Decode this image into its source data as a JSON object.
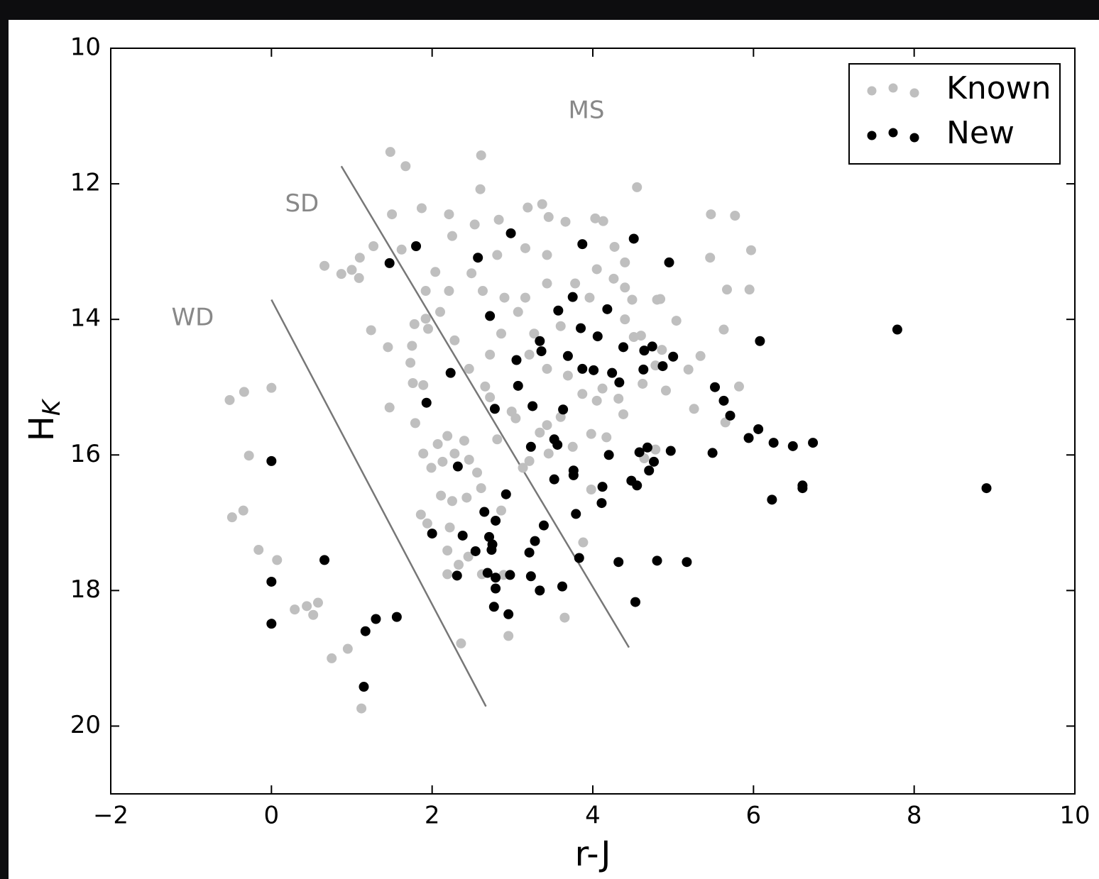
{
  "chart_data": {
    "type": "scatter",
    "xlabel": "r-J",
    "ylabel": {
      "text": "H",
      "subscript": "K"
    },
    "xlim": [
      -2,
      10
    ],
    "ylim": [
      10,
      21
    ],
    "y_inverted": true,
    "xticks": [
      {
        "value": -2,
        "label": "−2"
      },
      0,
      2,
      4,
      6,
      8,
      10
    ],
    "yticks": [
      10,
      12,
      14,
      16,
      18,
      20
    ],
    "grid": false,
    "legend": "upper right",
    "annotations": [
      {
        "text": "WD",
        "x": -0.98,
        "y": 13.99
      },
      {
        "text": "SD",
        "x": 0.38,
        "y": 12.31
      },
      {
        "text": "MS",
        "x": 3.92,
        "y": 10.93
      }
    ],
    "annotation_color": "#888888",
    "lines": [
      {
        "x": [
          0,
          2.67
        ],
        "y": [
          13.71,
          19.71
        ]
      },
      {
        "x": [
          0.87,
          4.45
        ],
        "y": [
          11.74,
          18.84
        ]
      }
    ],
    "line_color": "#777777",
    "series": [
      {
        "name": "Known",
        "color": "#bfbfbf",
        "x": [
          1.48,
          1.67,
          2.61,
          2.6,
          4.55,
          5.47,
          5.77,
          5.97,
          5.46,
          5.67,
          5.95,
          5.63,
          5.82,
          5.65,
          5.34,
          5.19,
          5.26,
          5.04,
          1.5,
          1.27,
          1.62,
          0.66,
          0.87,
          1.0,
          1.09,
          1.1,
          1.24,
          1.45,
          1.47,
          -0.52,
          -0.34,
          0.0,
          -0.28,
          -0.49,
          -0.35,
          -0.16,
          0.07,
          0.29,
          0.44,
          0.58,
          0.52,
          0.75,
          0.95,
          1.12,
          2.36,
          2.95,
          3.65,
          3.88,
          3.98,
          3.98,
          4.17,
          1.87,
          2.21,
          2.25,
          2.53,
          2.83,
          3.19,
          3.37,
          3.45,
          3.66,
          4.03,
          4.13,
          4.27,
          4.4,
          4.26,
          4.4,
          4.49,
          4.8,
          4.84,
          4.4,
          4.51,
          4.6,
          4.86,
          4.78,
          4.91,
          4.62,
          4.38,
          4.32,
          4.78,
          4.64,
          1.92,
          1.78,
          1.95,
          1.75,
          1.73,
          1.76,
          1.89,
          1.79,
          1.89,
          1.99,
          2.07,
          2.19,
          2.13,
          2.28,
          2.4,
          2.46,
          2.56,
          2.61,
          2.43,
          2.25,
          2.11,
          1.86,
          1.94,
          2.22,
          2.19,
          2.33,
          2.45,
          2.62,
          2.19,
          2.89,
          2.86,
          3.13,
          3.21,
          3.45,
          3.75,
          3.43,
          3.6,
          3.87,
          4.12,
          4.05,
          3.69,
          3.43,
          3.21,
          2.86,
          2.72,
          2.46,
          2.28,
          2.1,
          2.21,
          1.92,
          2.04,
          2.49,
          2.81,
          3.16,
          3.43,
          3.43,
          3.16,
          2.9,
          2.63,
          3.78,
          4.05,
          3.96,
          3.6,
          3.27,
          3.07,
          2.99,
          3.04,
          3.34,
          2.81,
          2.66,
          2.72
        ],
        "values": [
          11.53,
          11.74,
          11.58,
          12.08,
          12.05,
          12.45,
          12.47,
          12.98,
          13.09,
          13.56,
          13.56,
          14.15,
          14.99,
          15.52,
          14.54,
          14.74,
          15.32,
          14.02,
          12.45,
          12.92,
          12.97,
          13.21,
          13.33,
          13.27,
          13.39,
          13.09,
          14.16,
          14.41,
          15.3,
          15.19,
          15.07,
          15.01,
          16.01,
          16.92,
          16.82,
          17.4,
          17.55,
          18.28,
          18.23,
          18.18,
          18.36,
          19.0,
          18.86,
          19.74,
          18.78,
          18.67,
          18.4,
          17.29,
          16.51,
          15.69,
          15.74,
          12.36,
          12.45,
          12.77,
          12.6,
          12.53,
          12.35,
          12.3,
          12.49,
          12.56,
          12.51,
          12.55,
          12.93,
          13.16,
          13.4,
          13.53,
          13.71,
          13.71,
          13.7,
          14.0,
          14.26,
          14.24,
          14.45,
          14.68,
          15.05,
          14.95,
          15.4,
          15.17,
          15.92,
          16.05,
          13.99,
          14.07,
          14.14,
          14.39,
          14.64,
          14.94,
          14.97,
          15.53,
          15.98,
          16.19,
          15.84,
          15.72,
          16.1,
          15.98,
          15.79,
          16.07,
          16.26,
          16.49,
          16.63,
          16.68,
          16.6,
          16.88,
          17.01,
          17.07,
          17.41,
          17.62,
          17.5,
          17.76,
          17.76,
          17.77,
          16.82,
          16.19,
          16.09,
          15.98,
          15.88,
          15.56,
          15.44,
          15.1,
          15.02,
          15.2,
          14.83,
          14.73,
          14.52,
          14.21,
          14.52,
          14.73,
          14.31,
          13.89,
          13.58,
          13.58,
          13.3,
          13.32,
          13.05,
          12.95,
          13.05,
          13.47,
          13.68,
          13.68,
          13.58,
          13.47,
          13.26,
          13.68,
          14.1,
          14.21,
          13.89,
          15.36,
          15.46,
          15.67,
          15.77,
          14.99,
          15.15
        ]
      },
      {
        "name": "New",
        "color": "#000000",
        "x": [
          1.8,
          1.47,
          2.98,
          2.57,
          4.51,
          3.87,
          4.95,
          3.75,
          2.72,
          3.57,
          4.18,
          3.85,
          4.06,
          4.38,
          4.74,
          3.34,
          3.36,
          3.05,
          3.69,
          3.87,
          4.01,
          4.24,
          4.33,
          4.63,
          4.87,
          5.0,
          4.64,
          6.08,
          7.79,
          2.23,
          1.93,
          3.07,
          3.25,
          2.78,
          3.63,
          5.52,
          5.63,
          5.71,
          6.06,
          5.94,
          6.25,
          6.49,
          6.74,
          5.49,
          4.97,
          4.68,
          4.58,
          4.76,
          4.2,
          3.52,
          3.56,
          3.23,
          2.32,
          3.76,
          3.76,
          3.52,
          4.12,
          4.48,
          4.55,
          4.7,
          2.92,
          4.11,
          6.23,
          6.61,
          6.61,
          8.9,
          0.0,
          2.65,
          2.79,
          2.0,
          2.38,
          3.39,
          2.71,
          2.75,
          2.74,
          2.54,
          3.28,
          3.21,
          3.79,
          2.31,
          2.69,
          2.79,
          2.97,
          3.23,
          3.34,
          3.62,
          3.83,
          4.32,
          4.8,
          5.17,
          2.79,
          2.77,
          2.95,
          4.53,
          0.66,
          0.0,
          0.0,
          1.3,
          1.17,
          1.56,
          1.15
        ],
        "values": [
          12.92,
          13.17,
          12.73,
          13.09,
          12.81,
          12.89,
          13.16,
          13.67,
          13.95,
          13.87,
          13.85,
          14.13,
          14.25,
          14.41,
          14.4,
          14.32,
          14.47,
          14.6,
          14.54,
          14.73,
          14.75,
          14.79,
          14.93,
          14.74,
          14.69,
          14.55,
          14.46,
          14.32,
          14.15,
          14.79,
          15.23,
          14.98,
          15.28,
          15.32,
          15.33,
          15.0,
          15.2,
          15.42,
          15.62,
          15.75,
          15.82,
          15.87,
          15.82,
          15.97,
          15.94,
          15.89,
          15.96,
          16.1,
          16.0,
          15.77,
          15.85,
          15.88,
          16.17,
          16.23,
          16.3,
          16.36,
          16.47,
          16.38,
          16.45,
          16.23,
          16.58,
          16.71,
          16.66,
          16.45,
          16.49,
          16.49,
          16.09,
          16.84,
          16.97,
          17.16,
          17.19,
          17.04,
          17.21,
          17.32,
          17.4,
          17.42,
          17.27,
          17.44,
          16.87,
          17.78,
          17.74,
          17.81,
          17.77,
          17.79,
          18.0,
          17.94,
          17.52,
          17.58,
          17.56,
          17.58,
          17.97,
          18.24,
          18.35,
          18.17,
          17.55,
          17.87,
          18.49,
          18.42,
          18.6,
          18.39,
          19.42
        ]
      }
    ]
  }
}
